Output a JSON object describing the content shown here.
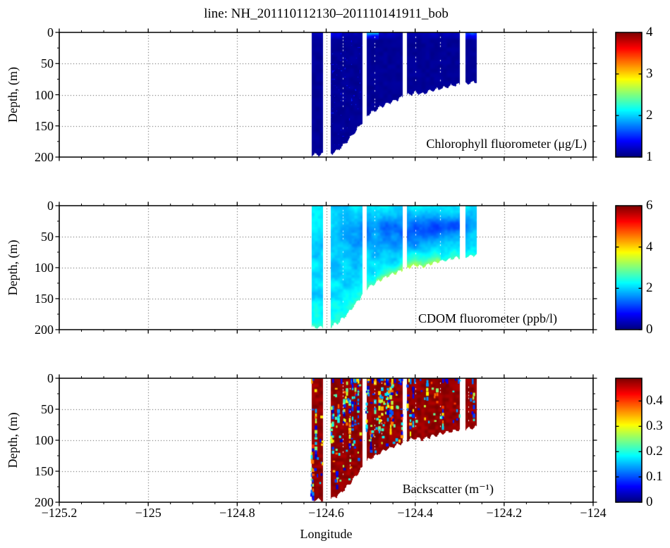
{
  "figure": {
    "title": "line: NH_201110112130–201110141911_bob",
    "x_axis": {
      "label": "Longitude",
      "tick_labels": [
        "−125.2",
        "−125",
        "−124.8",
        "−124.6",
        "−124.4",
        "−124.2",
        "−124"
      ]
    },
    "y_axis": {
      "label": "Depth, (m)",
      "tick_labels": [
        "0",
        "50",
        "100",
        "150",
        "200"
      ]
    },
    "panel_labels": [
      "Chlorophyll fluorometer (μg/L)",
      "CDOM fluorometer (ppb/l)",
      "Backscatter (m⁻¹)"
    ],
    "colorbar_tick_labels": [
      [
        "1",
        "2",
        "3",
        "4"
      ],
      [
        "0",
        "2",
        "4",
        "6"
      ],
      [
        "0",
        "0.1",
        "0.2",
        "0.3",
        "0.4"
      ]
    ]
  },
  "chart_data": {
    "type": "heatmap",
    "title": "line: NH_201110112130–201110141911_bob",
    "xlabel": "Longitude",
    "ylabel": "Depth, (m)",
    "x_range": [
      -125.2,
      -124
    ],
    "x_ticks": [
      -125.2,
      -125,
      -124.8,
      -124.6,
      -124.4,
      -124.2,
      -124
    ],
    "x_minor_step": 0.05,
    "y_range": [
      0,
      200
    ],
    "y_ticks": [
      0,
      50,
      100,
      150,
      200
    ],
    "y_minor_step": 25,
    "y_reversed": true,
    "grid": "dotted, at major ticks, drawn under data",
    "colormap": "jet",
    "legend_position": "vertical colorbar right of each panel",
    "data_lon_extent": [
      -124.633,
      -124.262
    ],
    "transect_gaps_lon": [
      [
        -124.607,
        -124.591
      ],
      [
        -124.519,
        -124.511
      ],
      [
        -124.428,
        -124.42
      ],
      [
        -124.299,
        -124.289
      ]
    ],
    "seafloor_profile_lon_depth": [
      [
        -124.633,
        196
      ],
      [
        -124.591,
        195
      ],
      [
        -124.574,
        188
      ],
      [
        -124.558,
        178
      ],
      [
        -124.537,
        160
      ],
      [
        -124.521,
        145
      ],
      [
        -124.506,
        131
      ],
      [
        -124.487,
        123
      ],
      [
        -124.468,
        115
      ],
      [
        -124.447,
        109
      ],
      [
        -124.42,
        100
      ],
      [
        -124.4,
        96
      ],
      [
        -124.384,
        98
      ],
      [
        -124.36,
        92
      ],
      [
        -124.336,
        88
      ],
      [
        -124.312,
        84
      ],
      [
        -124.29,
        82
      ],
      [
        -124.273,
        80
      ],
      [
        -124.26,
        78
      ]
    ],
    "panels": [
      {
        "variable": "Chlorophyll fluorometer",
        "units": "μg/L",
        "clim": [
          1,
          4
        ],
        "colorbar_ticks": [
          1,
          2,
          3,
          4
        ],
        "summary": "Nearly uniform low chlorophyll ≈1 μg/L (dark navy) over the whole sampled section; slightly elevated ≈1.5–2 μg/L in the top ~10 m near −124.51 and east of −124.30."
      },
      {
        "variable": "CDOM fluorometer",
        "units": "ppb/l",
        "clim": [
          0,
          6
        ],
        "colorbar_ticks": [
          0,
          2,
          4,
          6
        ],
        "summary": "Mostly ≈2 ppb/l (cyan); lower values ≈1.4–1.6 ppb/l (blue patches) in a 25–65 m band between −124.53 and −124.35; enhanced ≈2.6–3.2 ppb/l (green-yellow) within ~25 m of the seafloor, strongest between −124.49 and −124.36."
      },
      {
        "variable": "Backscatter",
        "units": "m⁻¹",
        "clim": [
          0,
          0.49
        ],
        "colorbar_ticks": [
          0,
          0.1,
          0.2,
          0.3,
          0.4
        ],
        "summary": "Saturated high backscatter ≥0.45 m⁻¹ (dark red) over most of the section, heavily speckled with low values 0.02–0.35 m⁻¹ (blue/cyan/yellow spots along profile tracks), densest west of −124.45 and in the upper 20 m."
      }
    ]
  }
}
